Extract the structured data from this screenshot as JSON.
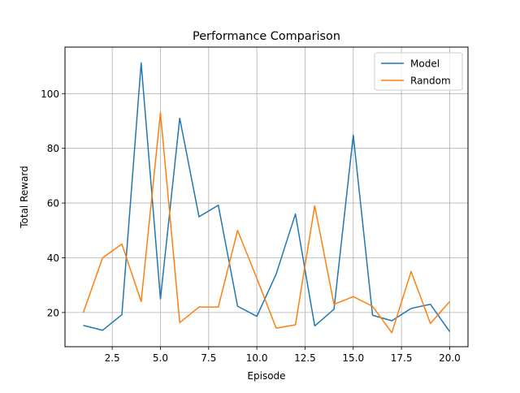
{
  "chart_data": {
    "type": "line",
    "title": "Performance Comparison",
    "xlabel": "Episode",
    "ylabel": "Total Reward",
    "xlim": [
      0.05,
      20.95
    ],
    "ylim": [
      7.5,
      117.0
    ],
    "xticks": [
      2.5,
      5.0,
      7.5,
      10.0,
      12.5,
      15.0,
      17.5,
      20.0
    ],
    "xtick_labels": [
      "2.5",
      "5.0",
      "7.5",
      "10.0",
      "12.5",
      "15.0",
      "17.5",
      "20.0"
    ],
    "yticks": [
      20,
      40,
      60,
      80,
      100
    ],
    "ytick_labels": [
      "20",
      "40",
      "60",
      "80",
      "100"
    ],
    "grid": true,
    "legend_position": "top-right",
    "x": [
      1,
      2,
      3,
      4,
      5,
      6,
      7,
      8,
      9,
      10,
      11,
      12,
      13,
      14,
      15,
      16,
      17,
      18,
      19,
      20
    ],
    "series": [
      {
        "name": "Model",
        "color": "#1f77b4",
        "values": [
          15.3,
          13.5,
          19.2,
          111.2,
          25,
          91,
          55,
          59.2,
          22.3,
          18.6,
          34,
          56,
          15.1,
          21.2,
          84.8,
          19,
          17,
          21.5,
          23,
          13
        ]
      },
      {
        "name": "Random",
        "color": "#ff7f0e",
        "values": [
          20,
          40,
          45,
          24,
          93,
          16.3,
          22,
          22,
          50,
          32.5,
          14.3,
          15.5,
          59,
          23,
          25.8,
          22.3,
          12.6,
          35,
          16,
          24
        ]
      }
    ]
  }
}
